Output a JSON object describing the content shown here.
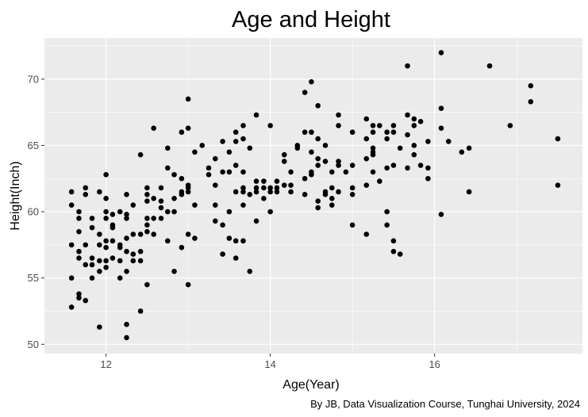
{
  "chart_data": {
    "type": "scatter",
    "title": "Age and Height",
    "xlabel": "Age(Year)",
    "ylabel": "Height(Inch)",
    "caption": "By JB, Data Visualization Course, Tunghai University, 2024",
    "xlim": [
      11.25,
      17.8
    ],
    "ylim": [
      49.3,
      73.1
    ],
    "x_ticks": [
      12,
      14,
      16
    ],
    "y_ticks": [
      50,
      55,
      60,
      65,
      70
    ],
    "x_minor_ticks": [
      13,
      15,
      17
    ],
    "y_minor_ticks": [
      52.5,
      57.5,
      62.5,
      67.5,
      72.5
    ],
    "grid": true,
    "background": "#ebebeb",
    "grid_color": "#ffffff",
    "point_color": "#000000",
    "points": [
      {
        "x": 11.58,
        "y": 61.5
      },
      {
        "x": 11.58,
        "y": 60.5
      },
      {
        "x": 11.58,
        "y": 57.5
      },
      {
        "x": 11.58,
        "y": 55.0
      },
      {
        "x": 11.58,
        "y": 52.8
      },
      {
        "x": 11.67,
        "y": 60.0
      },
      {
        "x": 11.67,
        "y": 59.5
      },
      {
        "x": 11.67,
        "y": 58.5
      },
      {
        "x": 11.67,
        "y": 57.0
      },
      {
        "x": 11.67,
        "y": 56.5
      },
      {
        "x": 11.67,
        "y": 53.8
      },
      {
        "x": 11.67,
        "y": 53.5
      },
      {
        "x": 11.75,
        "y": 61.8
      },
      {
        "x": 11.75,
        "y": 61.3
      },
      {
        "x": 11.75,
        "y": 57.5
      },
      {
        "x": 11.75,
        "y": 56.0
      },
      {
        "x": 11.75,
        "y": 53.3
      },
      {
        "x": 11.83,
        "y": 59.5
      },
      {
        "x": 11.83,
        "y": 58.8
      },
      {
        "x": 11.83,
        "y": 56.5
      },
      {
        "x": 11.83,
        "y": 56.0
      },
      {
        "x": 11.83,
        "y": 55.0
      },
      {
        "x": 11.92,
        "y": 61.5
      },
      {
        "x": 11.92,
        "y": 58.3
      },
      {
        "x": 11.92,
        "y": 57.5
      },
      {
        "x": 11.92,
        "y": 56.3
      },
      {
        "x": 11.92,
        "y": 55.5
      },
      {
        "x": 11.92,
        "y": 51.3
      },
      {
        "x": 12.0,
        "y": 62.8
      },
      {
        "x": 12.0,
        "y": 61.0
      },
      {
        "x": 12.0,
        "y": 60.0
      },
      {
        "x": 12.0,
        "y": 59.5
      },
      {
        "x": 12.0,
        "y": 57.8
      },
      {
        "x": 12.0,
        "y": 57.3
      },
      {
        "x": 12.0,
        "y": 56.3
      },
      {
        "x": 12.0,
        "y": 55.8
      },
      {
        "x": 12.08,
        "y": 59.8
      },
      {
        "x": 12.08,
        "y": 59.0
      },
      {
        "x": 12.08,
        "y": 58.8
      },
      {
        "x": 12.08,
        "y": 57.8
      },
      {
        "x": 12.08,
        "y": 56.5
      },
      {
        "x": 12.17,
        "y": 60.0
      },
      {
        "x": 12.17,
        "y": 57.5
      },
      {
        "x": 12.17,
        "y": 57.3
      },
      {
        "x": 12.17,
        "y": 56.3
      },
      {
        "x": 12.17,
        "y": 55.0
      },
      {
        "x": 12.25,
        "y": 61.3
      },
      {
        "x": 12.25,
        "y": 59.8
      },
      {
        "x": 12.25,
        "y": 59.5
      },
      {
        "x": 12.25,
        "y": 58.0
      },
      {
        "x": 12.25,
        "y": 57.0
      },
      {
        "x": 12.25,
        "y": 55.5
      },
      {
        "x": 12.25,
        "y": 51.5
      },
      {
        "x": 12.25,
        "y": 50.5
      },
      {
        "x": 12.33,
        "y": 60.5
      },
      {
        "x": 12.33,
        "y": 58.3
      },
      {
        "x": 12.33,
        "y": 56.8
      },
      {
        "x": 12.33,
        "y": 56.3
      },
      {
        "x": 12.42,
        "y": 64.3
      },
      {
        "x": 12.42,
        "y": 58.3
      },
      {
        "x": 12.42,
        "y": 57.0
      },
      {
        "x": 12.42,
        "y": 56.3
      },
      {
        "x": 12.42,
        "y": 52.5
      },
      {
        "x": 12.5,
        "y": 61.8
      },
      {
        "x": 12.5,
        "y": 61.3
      },
      {
        "x": 12.5,
        "y": 60.8
      },
      {
        "x": 12.5,
        "y": 59.5
      },
      {
        "x": 12.5,
        "y": 59.0
      },
      {
        "x": 12.5,
        "y": 58.5
      },
      {
        "x": 12.5,
        "y": 54.5
      },
      {
        "x": 12.58,
        "y": 66.3
      },
      {
        "x": 12.58,
        "y": 61.0
      },
      {
        "x": 12.58,
        "y": 59.5
      },
      {
        "x": 12.58,
        "y": 58.3
      },
      {
        "x": 12.67,
        "y": 61.8
      },
      {
        "x": 12.67,
        "y": 60.8
      },
      {
        "x": 12.67,
        "y": 60.3
      },
      {
        "x": 12.67,
        "y": 59.5
      },
      {
        "x": 12.75,
        "y": 64.8
      },
      {
        "x": 12.75,
        "y": 63.3
      },
      {
        "x": 12.75,
        "y": 60.0
      },
      {
        "x": 12.75,
        "y": 57.8
      },
      {
        "x": 12.83,
        "y": 62.8
      },
      {
        "x": 12.83,
        "y": 61.0
      },
      {
        "x": 12.83,
        "y": 60.0
      },
      {
        "x": 12.83,
        "y": 55.5
      },
      {
        "x": 12.92,
        "y": 66.0
      },
      {
        "x": 12.92,
        "y": 62.5
      },
      {
        "x": 12.92,
        "y": 61.5
      },
      {
        "x": 12.92,
        "y": 61.3
      },
      {
        "x": 12.92,
        "y": 57.3
      },
      {
        "x": 13.0,
        "y": 68.5
      },
      {
        "x": 13.0,
        "y": 66.3
      },
      {
        "x": 13.0,
        "y": 62.0
      },
      {
        "x": 13.0,
        "y": 61.8
      },
      {
        "x": 13.0,
        "y": 61.5
      },
      {
        "x": 13.0,
        "y": 58.3
      },
      {
        "x": 13.0,
        "y": 54.5
      },
      {
        "x": 13.08,
        "y": 64.5
      },
      {
        "x": 13.08,
        "y": 60.5
      },
      {
        "x": 13.08,
        "y": 58.0
      },
      {
        "x": 13.17,
        "y": 65.0
      },
      {
        "x": 13.25,
        "y": 63.3
      },
      {
        "x": 13.25,
        "y": 62.8
      },
      {
        "x": 13.33,
        "y": 64.0
      },
      {
        "x": 13.33,
        "y": 62.0
      },
      {
        "x": 13.33,
        "y": 60.5
      },
      {
        "x": 13.33,
        "y": 59.3
      },
      {
        "x": 13.42,
        "y": 65.3
      },
      {
        "x": 13.42,
        "y": 63.0
      },
      {
        "x": 13.42,
        "y": 59.0
      },
      {
        "x": 13.42,
        "y": 56.8
      },
      {
        "x": 13.5,
        "y": 64.5
      },
      {
        "x": 13.5,
        "y": 63.0
      },
      {
        "x": 13.5,
        "y": 60.0
      },
      {
        "x": 13.5,
        "y": 58.0
      },
      {
        "x": 13.58,
        "y": 66.0
      },
      {
        "x": 13.58,
        "y": 65.3
      },
      {
        "x": 13.58,
        "y": 63.5
      },
      {
        "x": 13.58,
        "y": 61.5
      },
      {
        "x": 13.58,
        "y": 57.8
      },
      {
        "x": 13.58,
        "y": 56.5
      },
      {
        "x": 13.67,
        "y": 66.5
      },
      {
        "x": 13.67,
        "y": 65.5
      },
      {
        "x": 13.67,
        "y": 63.0
      },
      {
        "x": 13.67,
        "y": 61.8
      },
      {
        "x": 13.67,
        "y": 61.5
      },
      {
        "x": 13.67,
        "y": 60.5
      },
      {
        "x": 13.67,
        "y": 57.8
      },
      {
        "x": 13.75,
        "y": 64.8
      },
      {
        "x": 13.75,
        "y": 61.3
      },
      {
        "x": 13.75,
        "y": 55.5
      },
      {
        "x": 13.83,
        "y": 67.3
      },
      {
        "x": 13.83,
        "y": 62.3
      },
      {
        "x": 13.83,
        "y": 61.8
      },
      {
        "x": 13.83,
        "y": 61.5
      },
      {
        "x": 13.83,
        "y": 59.3
      },
      {
        "x": 13.92,
        "y": 62.3
      },
      {
        "x": 13.92,
        "y": 61.8
      },
      {
        "x": 13.92,
        "y": 61.0
      },
      {
        "x": 14.0,
        "y": 66.5
      },
      {
        "x": 14.0,
        "y": 61.8
      },
      {
        "x": 14.0,
        "y": 61.5
      },
      {
        "x": 14.0,
        "y": 60.0
      },
      {
        "x": 14.08,
        "y": 62.3
      },
      {
        "x": 14.08,
        "y": 61.8
      },
      {
        "x": 14.08,
        "y": 61.5
      },
      {
        "x": 14.17,
        "y": 64.3
      },
      {
        "x": 14.17,
        "y": 63.8
      },
      {
        "x": 14.17,
        "y": 62.0
      },
      {
        "x": 14.25,
        "y": 63.0
      },
      {
        "x": 14.25,
        "y": 62.0
      },
      {
        "x": 14.25,
        "y": 61.5
      },
      {
        "x": 14.33,
        "y": 65.0
      },
      {
        "x": 14.33,
        "y": 64.8
      },
      {
        "x": 14.42,
        "y": 69.0
      },
      {
        "x": 14.42,
        "y": 66.0
      },
      {
        "x": 14.42,
        "y": 62.5
      },
      {
        "x": 14.42,
        "y": 61.3
      },
      {
        "x": 14.5,
        "y": 69.8
      },
      {
        "x": 14.5,
        "y": 66.0
      },
      {
        "x": 14.5,
        "y": 64.5
      },
      {
        "x": 14.5,
        "y": 63.0
      },
      {
        "x": 14.5,
        "y": 62.8
      },
      {
        "x": 14.58,
        "y": 68.0
      },
      {
        "x": 14.58,
        "y": 65.5
      },
      {
        "x": 14.58,
        "y": 64.0
      },
      {
        "x": 14.58,
        "y": 63.5
      },
      {
        "x": 14.58,
        "y": 60.8
      },
      {
        "x": 14.58,
        "y": 60.3
      },
      {
        "x": 14.67,
        "y": 65.0
      },
      {
        "x": 14.67,
        "y": 63.8
      },
      {
        "x": 14.67,
        "y": 61.5
      },
      {
        "x": 14.67,
        "y": 61.3
      },
      {
        "x": 14.75,
        "y": 63.0
      },
      {
        "x": 14.75,
        "y": 61.8
      },
      {
        "x": 14.75,
        "y": 61.0
      },
      {
        "x": 14.75,
        "y": 60.5
      },
      {
        "x": 14.83,
        "y": 67.3
      },
      {
        "x": 14.83,
        "y": 66.5
      },
      {
        "x": 14.83,
        "y": 63.8
      },
      {
        "x": 14.83,
        "y": 63.5
      },
      {
        "x": 14.83,
        "y": 61.5
      },
      {
        "x": 14.92,
        "y": 63.0
      },
      {
        "x": 15.0,
        "y": 66.0
      },
      {
        "x": 15.0,
        "y": 63.5
      },
      {
        "x": 15.0,
        "y": 61.8
      },
      {
        "x": 15.0,
        "y": 61.3
      },
      {
        "x": 15.0,
        "y": 59.0
      },
      {
        "x": 15.17,
        "y": 67.0
      },
      {
        "x": 15.17,
        "y": 65.5
      },
      {
        "x": 15.17,
        "y": 64.0
      },
      {
        "x": 15.17,
        "y": 62.0
      },
      {
        "x": 15.17,
        "y": 58.3
      },
      {
        "x": 15.25,
        "y": 66.5
      },
      {
        "x": 15.25,
        "y": 66.0
      },
      {
        "x": 15.25,
        "y": 64.8
      },
      {
        "x": 15.25,
        "y": 64.5
      },
      {
        "x": 15.25,
        "y": 64.3
      },
      {
        "x": 15.25,
        "y": 63.0
      },
      {
        "x": 15.33,
        "y": 66.5
      },
      {
        "x": 15.33,
        "y": 62.3
      },
      {
        "x": 15.42,
        "y": 66.0
      },
      {
        "x": 15.42,
        "y": 65.5
      },
      {
        "x": 15.42,
        "y": 63.3
      },
      {
        "x": 15.42,
        "y": 60.0
      },
      {
        "x": 15.42,
        "y": 59.0
      },
      {
        "x": 15.5,
        "y": 66.5
      },
      {
        "x": 15.5,
        "y": 66.0
      },
      {
        "x": 15.5,
        "y": 63.5
      },
      {
        "x": 15.5,
        "y": 57.8
      },
      {
        "x": 15.5,
        "y": 57.0
      },
      {
        "x": 15.58,
        "y": 64.8
      },
      {
        "x": 15.58,
        "y": 56.8
      },
      {
        "x": 15.67,
        "y": 71.0
      },
      {
        "x": 15.67,
        "y": 67.3
      },
      {
        "x": 15.67,
        "y": 65.8
      },
      {
        "x": 15.67,
        "y": 63.3
      },
      {
        "x": 15.75,
        "y": 67.0
      },
      {
        "x": 15.75,
        "y": 66.5
      },
      {
        "x": 15.75,
        "y": 65.0
      },
      {
        "x": 15.75,
        "y": 64.3
      },
      {
        "x": 15.83,
        "y": 66.8
      },
      {
        "x": 15.83,
        "y": 63.5
      },
      {
        "x": 15.92,
        "y": 65.3
      },
      {
        "x": 15.92,
        "y": 63.3
      },
      {
        "x": 15.92,
        "y": 62.5
      },
      {
        "x": 16.08,
        "y": 72.0
      },
      {
        "x": 16.08,
        "y": 67.8
      },
      {
        "x": 16.08,
        "y": 66.3
      },
      {
        "x": 16.08,
        "y": 59.8
      },
      {
        "x": 16.17,
        "y": 65.3
      },
      {
        "x": 16.33,
        "y": 64.5
      },
      {
        "x": 16.42,
        "y": 64.8
      },
      {
        "x": 16.42,
        "y": 61.5
      },
      {
        "x": 16.67,
        "y": 71.0
      },
      {
        "x": 16.92,
        "y": 66.5
      },
      {
        "x": 17.17,
        "y": 69.5
      },
      {
        "x": 17.17,
        "y": 68.3
      },
      {
        "x": 17.5,
        "y": 65.5
      },
      {
        "x": 17.5,
        "y": 62.0
      }
    ]
  }
}
